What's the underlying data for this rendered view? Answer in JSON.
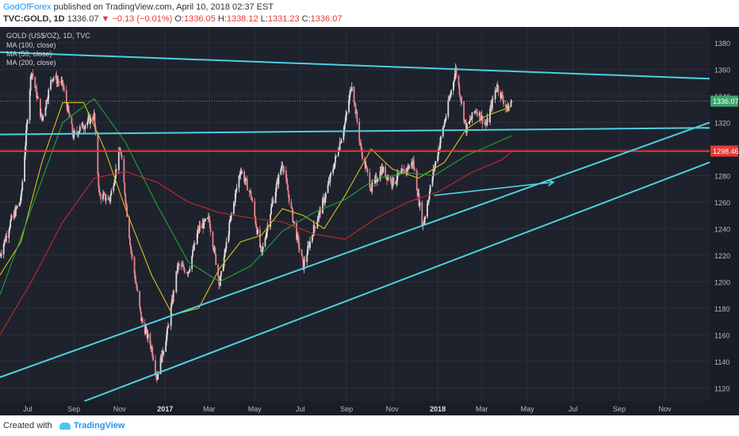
{
  "header": {
    "author": "GodOfForex",
    "published_text": "published on TradingView.com, April 10, 2018 02:37 EST",
    "symbol": "TVC:GOLD, 1D",
    "last": "1336.07",
    "change": "−0.13 (−0.01%)",
    "o_label": "O:",
    "o_value": "1336.05",
    "h_label": "H:",
    "h_value": "1338.12",
    "l_label": "L:",
    "l_value": "1331.23",
    "c_label": "C:",
    "c_value": "1336.07"
  },
  "footer": {
    "created_with": "Created with",
    "brand": "TradingView"
  },
  "colors": {
    "background": "#1e222d",
    "grid": "#2b2f3a",
    "up": "#dcdcdc",
    "down": "#e8838c",
    "trendline": "#4dd0e1",
    "resistance": "#e53935",
    "ma100": "#21a336",
    "ma50": "#d6c21e",
    "ma200": "#c62828",
    "price_tag": "#3fa46a"
  },
  "chart_data": {
    "type": "candlestick",
    "title": "GOLD (US$/OZ), 1D, TVC",
    "legend": [
      "MA (100, close)",
      "MA (50, close)",
      "MA (200, close)"
    ],
    "legend_position": "top-left",
    "x_ticks": [
      "Jul",
      "Sep",
      "Nov",
      "2017",
      "Mar",
      "May",
      "Jul",
      "Sep",
      "Nov",
      "2018",
      "Mar",
      "May",
      "Jul",
      "Sep",
      "Nov"
    ],
    "y_ticks": [
      1120,
      1140,
      1160,
      1180,
      1200,
      1220,
      1240,
      1260,
      1280,
      1300,
      1320,
      1340,
      1360,
      1380
    ],
    "ylim": [
      1110,
      1392
    ],
    "grid": true,
    "last_price": 1336.07,
    "last_price_label": "1336.07",
    "level_price": 1298.46,
    "level_label": "1298.46",
    "price_path": [
      [
        "2016-05-25",
        1220
      ],
      [
        "2016-06-08",
        1245
      ],
      [
        "2016-06-22",
        1262
      ],
      [
        "2016-07-06",
        1360
      ],
      [
        "2016-07-20",
        1322
      ],
      [
        "2016-08-03",
        1355
      ],
      [
        "2016-08-17",
        1348
      ],
      [
        "2016-08-31",
        1310
      ],
      [
        "2016-09-14",
        1318
      ],
      [
        "2016-09-28",
        1325
      ],
      [
        "2016-10-05",
        1265
      ],
      [
        "2016-10-19",
        1262
      ],
      [
        "2016-11-02",
        1300
      ],
      [
        "2016-11-16",
        1225
      ],
      [
        "2016-11-30",
        1172
      ],
      [
        "2016-12-14",
        1150
      ],
      [
        "2016-12-21",
        1128
      ],
      [
        "2017-01-04",
        1162
      ],
      [
        "2017-01-18",
        1212
      ],
      [
        "2017-02-01",
        1208
      ],
      [
        "2017-02-15",
        1240
      ],
      [
        "2017-03-01",
        1247
      ],
      [
        "2017-03-15",
        1198
      ],
      [
        "2017-03-29",
        1245
      ],
      [
        "2017-04-12",
        1285
      ],
      [
        "2017-04-26",
        1265
      ],
      [
        "2017-05-10",
        1220
      ],
      [
        "2017-05-24",
        1258
      ],
      [
        "2017-06-07",
        1290
      ],
      [
        "2017-06-21",
        1248
      ],
      [
        "2017-07-05",
        1212
      ],
      [
        "2017-07-19",
        1240
      ],
      [
        "2017-08-02",
        1262
      ],
      [
        "2017-08-16",
        1290
      ],
      [
        "2017-08-30",
        1320
      ],
      [
        "2017-09-08",
        1350
      ],
      [
        "2017-09-20",
        1300
      ],
      [
        "2017-10-04",
        1270
      ],
      [
        "2017-10-18",
        1285
      ],
      [
        "2017-11-01",
        1275
      ],
      [
        "2017-11-15",
        1282
      ],
      [
        "2017-11-29",
        1290
      ],
      [
        "2017-12-12",
        1242
      ],
      [
        "2017-12-27",
        1285
      ],
      [
        "2018-01-10",
        1320
      ],
      [
        "2018-01-25",
        1360
      ],
      [
        "2018-02-08",
        1315
      ],
      [
        "2018-02-21",
        1330
      ],
      [
        "2018-03-07",
        1318
      ],
      [
        "2018-03-21",
        1348
      ],
      [
        "2018-04-04",
        1330
      ],
      [
        "2018-04-10",
        1336.07
      ]
    ],
    "ma100_path": [
      [
        "2016-05-25",
        1190
      ],
      [
        "2016-07-06",
        1255
      ],
      [
        "2016-08-17",
        1320
      ],
      [
        "2016-09-28",
        1338
      ],
      [
        "2016-11-09",
        1305
      ],
      [
        "2016-12-21",
        1258
      ],
      [
        "2017-02-01",
        1215
      ],
      [
        "2017-03-15",
        1200
      ],
      [
        "2017-04-26",
        1212
      ],
      [
        "2017-06-07",
        1238
      ],
      [
        "2017-07-19",
        1252
      ],
      [
        "2017-08-30",
        1262
      ],
      [
        "2017-10-11",
        1278
      ],
      [
        "2017-11-22",
        1282
      ],
      [
        "2017-12-27",
        1280
      ],
      [
        "2018-02-08",
        1295
      ],
      [
        "2018-03-21",
        1305
      ],
      [
        "2018-04-10",
        1310
      ]
    ],
    "ma50_path": [
      [
        "2016-05-25",
        1205
      ],
      [
        "2016-06-22",
        1230
      ],
      [
        "2016-07-20",
        1290
      ],
      [
        "2016-08-17",
        1335
      ],
      [
        "2016-09-14",
        1335
      ],
      [
        "2016-10-12",
        1300
      ],
      [
        "2016-11-09",
        1255
      ],
      [
        "2016-12-14",
        1205
      ],
      [
        "2017-01-11",
        1175
      ],
      [
        "2017-02-15",
        1180
      ],
      [
        "2017-03-15",
        1210
      ],
      [
        "2017-04-12",
        1230
      ],
      [
        "2017-05-10",
        1235
      ],
      [
        "2017-06-07",
        1255
      ],
      [
        "2017-07-05",
        1250
      ],
      [
        "2017-08-02",
        1240
      ],
      [
        "2017-08-30",
        1265
      ],
      [
        "2017-10-04",
        1300
      ],
      [
        "2017-11-01",
        1285
      ],
      [
        "2017-12-06",
        1278
      ],
      [
        "2018-01-10",
        1290
      ],
      [
        "2018-02-08",
        1315
      ],
      [
        "2018-03-07",
        1325
      ],
      [
        "2018-04-10",
        1332
      ]
    ],
    "ma200_path": [
      [
        "2016-05-25",
        1160
      ],
      [
        "2016-07-06",
        1200
      ],
      [
        "2016-08-17",
        1245
      ],
      [
        "2016-09-28",
        1278
      ],
      [
        "2016-11-09",
        1283
      ],
      [
        "2016-12-21",
        1275
      ],
      [
        "2017-02-01",
        1260
      ],
      [
        "2017-03-15",
        1252
      ],
      [
        "2017-04-26",
        1248
      ],
      [
        "2017-06-07",
        1245
      ],
      [
        "2017-07-19",
        1236
      ],
      [
        "2017-08-30",
        1232
      ],
      [
        "2017-10-11",
        1248
      ],
      [
        "2017-11-22",
        1260
      ],
      [
        "2018-01-03",
        1268
      ],
      [
        "2018-02-14",
        1282
      ],
      [
        "2018-03-28",
        1292
      ],
      [
        "2018-04-10",
        1298
      ]
    ],
    "trendlines": [
      {
        "name": "upper",
        "from": [
          "2016-05-25",
          1373
        ],
        "to": [
          "2018-12-31",
          1353
        ]
      },
      {
        "name": "middle",
        "from": [
          "2016-05-25",
          1311
        ],
        "to": [
          "2018-12-31",
          1316
        ]
      },
      {
        "name": "lower-1",
        "from": [
          "2016-05-25",
          1128
        ],
        "to": [
          "2018-12-31",
          1320
        ]
      },
      {
        "name": "lower-2",
        "from": [
          "2016-09-15",
          1110
        ],
        "to": [
          "2018-12-31",
          1290
        ]
      }
    ],
    "projection_arrow": {
      "from": [
        "2017-12-27",
        1265
      ],
      "to": [
        "2018-06-05",
        1275
      ]
    }
  }
}
